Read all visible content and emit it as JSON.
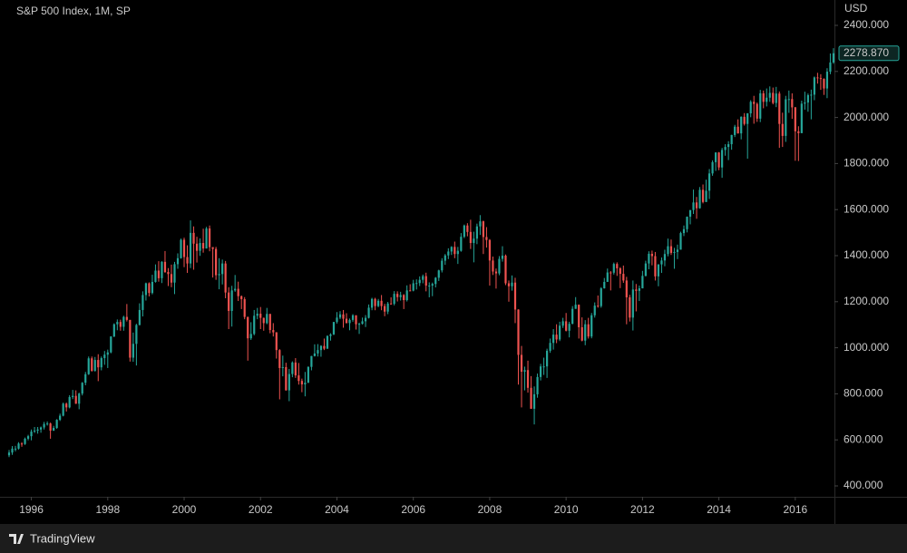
{
  "chart_data": {
    "type": "candlestick",
    "title": "S&P 500 Index, 1M, SP",
    "y_label": "USD",
    "up_color": "#26a69a",
    "down_color": "#ef5350",
    "open": [
      533,
      545,
      562,
      562,
      584,
      582,
      605,
      616,
      636,
      640,
      645,
      654,
      669,
      671,
      640,
      652,
      687,
      705,
      757,
      741,
      786,
      791,
      757,
      801,
      848,
      885,
      954,
      899,
      947,
      915,
      955,
      970,
      980,
      1049,
      1102,
      1112,
      1091,
      1134,
      1121,
      957,
      1017,
      1099,
      1164,
      1229,
      1280,
      1238,
      1286,
      1335,
      1302,
      1373,
      1329,
      1320,
      1283,
      1363,
      1389,
      1469,
      1394,
      1366,
      1499,
      1452,
      1421,
      1455,
      1431,
      1518,
      1437,
      1429,
      1315,
      1320,
      1366,
      1240,
      1160,
      1249,
      1256,
      1224,
      1211,
      1134,
      1041,
      1060,
      1139,
      1148,
      1130,
      1107,
      1147,
      1077,
      1067,
      990,
      912,
      916,
      815,
      886,
      936,
      880,
      856,
      841,
      848,
      917,
      964,
      975,
      990,
      1008,
      996,
      1051,
      1058,
      1112,
      1131,
      1145,
      1126,
      1107,
      1121,
      1141,
      1102,
      1104,
      1115,
      1130,
      1174,
      1212,
      1181,
      1204,
      1181,
      1157,
      1192,
      1191,
      1234,
      1220,
      1229,
      1207,
      1249,
      1248,
      1280,
      1281,
      1295,
      1311,
      1270,
      1270,
      1277,
      1304,
      1336,
      1378,
      1401,
      1418,
      1438,
      1407,
      1421,
      1482,
      1531,
      1503,
      1455,
      1474,
      1527,
      1549,
      1481,
      1468,
      1379,
      1331,
      1323,
      1386,
      1400,
      1280,
      1267,
      1283,
      1166,
      969,
      896,
      903,
      826,
      735,
      798,
      873,
      919,
      919,
      987,
      1021,
      1057,
      1036,
      1096,
      1115,
      1074,
      1104,
      1169,
      1187,
      1089,
      1031,
      1102,
      1049,
      1141,
      1183,
      1181,
      1258,
      1286,
      1327,
      1326,
      1364,
      1345,
      1321,
      1292,
      1219,
      1131,
      1253,
      1247,
      1258,
      1312,
      1366,
      1408,
      1398,
      1310,
      1362,
      1379,
      1407,
      1441,
      1412,
      1416,
      1426,
      1498,
      1515,
      1569,
      1598,
      1631,
      1606,
      1686,
      1633,
      1682,
      1757,
      1806,
      1848,
      1783,
      1859,
      1872,
      1884,
      1924,
      1960,
      1931,
      2003,
      1972,
      2018,
      2068,
      2059,
      1995,
      2105,
      2068,
      2086,
      2107,
      2063,
      2104,
      1972,
      1920,
      2079,
      2080,
      2044,
      1940,
      1932,
      2060,
      2065,
      2097,
      2099,
      2174,
      2171,
      2168,
      2126,
      2199,
      2239
    ],
    "high": [
      556,
      573,
      574,
      590,
      590,
      610,
      622,
      645,
      656,
      656,
      658,
      678,
      680,
      675,
      661,
      690,
      714,
      762,
      762,
      794,
      817,
      815,
      805,
      851,
      895,
      962,
      962,
      960,
      972,
      962,
      986,
      992,
      1050,
      1106,
      1123,
      1122,
      1139,
      1190,
      1121,
      1066,
      1104,
      1193,
      1245,
      1283,
      1284,
      1317,
      1362,
      1376,
      1376,
      1420,
      1346,
      1361,
      1373,
      1410,
      1474,
      1478,
      1445,
      1553,
      1527,
      1482,
      1475,
      1517,
      1525,
      1531,
      1437,
      1438,
      1389,
      1383,
      1377,
      1263,
      1269,
      1316,
      1287,
      1227,
      1220,
      1135,
      1111,
      1164,
      1173,
      1177,
      1131,
      1173,
      1147,
      1107,
      1068,
      994,
      966,
      935,
      908,
      941,
      955,
      934,
      866,
      895,
      919,
      965,
      1015,
      1016,
      1011,
      1040,
      1054,
      1063,
      1112,
      1155,
      1159,
      1164,
      1150,
      1127,
      1146,
      1141,
      1109,
      1131,
      1142,
      1188,
      1217,
      1217,
      1212,
      1229,
      1191,
      1199,
      1219,
      1246,
      1245,
      1243,
      1233,
      1271,
      1276,
      1295,
      1297,
      1310,
      1318,
      1326,
      1284,
      1283,
      1307,
      1339,
      1389,
      1407,
      1432,
      1441,
      1461,
      1438,
      1498,
      1535,
      1541,
      1556,
      1504,
      1539,
      1576,
      1552,
      1524,
      1472,
      1396,
      1344,
      1398,
      1441,
      1405,
      1292,
      1314,
      1304,
      1167,
      1008,
      918,
      944,
      877,
      832,
      888,
      930,
      957,
      996,
      1040,
      1081,
      1102,
      1113,
      1130,
      1151,
      1113,
      1181,
      1220,
      1188,
      1132,
      1120,
      1130,
      1151,
      1197,
      1227,
      1263,
      1303,
      1344,
      1333,
      1370,
      1371,
      1350,
      1357,
      1308,
      1230,
      1292,
      1277,
      1270,
      1334,
      1378,
      1419,
      1422,
      1416,
      1363,
      1392,
      1426,
      1474,
      1470,
      1434,
      1448,
      1504,
      1531,
      1570,
      1598,
      1687,
      1655,
      1698,
      1709,
      1730,
      1776,
      1814,
      1849,
      1850,
      1868,
      1884,
      1897,
      1925,
      1968,
      1992,
      2005,
      2019,
      2019,
      2075,
      2094,
      2065,
      2120,
      2117,
      2126,
      2135,
      2130,
      2133,
      2113,
      2021,
      2094,
      2117,
      2105,
      2046,
      1962,
      2073,
      2112,
      2104,
      2121,
      2178,
      2194,
      2188,
      2170,
      2214,
      2278,
      2301
    ],
    "low": [
      525,
      535,
      550,
      558,
      570,
      578,
      598,
      598,
      630,
      627,
      631,
      645,
      662,
      605,
      639,
      648,
      682,
      702,
      723,
      737,
      777,
      756,
      733,
      793,
      837,
      882,
      897,
      897,
      855,
      902,
      926,
      912,
      976,
      1046,
      1076,
      1074,
      1074,
      1114,
      940,
      939,
      923,
      1097,
      1136,
      1205,
      1223,
      1232,
      1283,
      1287,
      1281,
      1325,
      1268,
      1263,
      1233,
      1343,
      1387,
      1350,
      1325,
      1346,
      1339,
      1370,
      1399,
      1413,
      1431,
      1419,
      1305,
      1295,
      1254,
      1275,
      1215,
      1081,
      1092,
      1243,
      1203,
      1168,
      1124,
      944,
      1034,
      1054,
      1124,
      1081,
      1074,
      1102,
      1063,
      1049,
      953,
      776,
      876,
      814,
      768,
      872,
      869,
      840,
      807,
      789,
      847,
      902,
      962,
      962,
      961,
      990,
      995,
      1031,
      1055,
      1105,
      1124,
      1087,
      1106,
      1076,
      1113,
      1079,
      1060,
      1101,
      1090,
      1127,
      1163,
      1163,
      1176,
      1163,
      1137,
      1146,
      1188,
      1184,
      1201,
      1205,
      1168,
      1201,
      1246,
      1245,
      1253,
      1268,
      1280,
      1245,
      1219,
      1224,
      1262,
      1290,
      1327,
      1360,
      1385,
      1403,
      1389,
      1364,
      1417,
      1476,
      1484,
      1429,
      1371,
      1450,
      1490,
      1407,
      1435,
      1270,
      1316,
      1257,
      1315,
      1374,
      1272,
      1200,
      1248,
      1107,
      840,
      741,
      815,
      805,
      735,
      667,
      783,
      858,
      882,
      869,
      978,
      992,
      1020,
      1029,
      1086,
      1071,
      1045,
      1102,
      1169,
      1040,
      1028,
      1011,
      1040,
      1041,
      1131,
      1174,
      1174,
      1257,
      1295,
      1249,
      1318,
      1312,
      1259,
      1282,
      1102,
      1114,
      1075,
      1158,
      1203,
      1258,
      1310,
      1341,
      1358,
      1292,
      1267,
      1325,
      1354,
      1397,
      1403,
      1343,
      1385,
      1426,
      1485,
      1501,
      1536,
      1581,
      1560,
      1604,
      1627,
      1633,
      1646,
      1747,
      1768,
      1771,
      1738,
      1834,
      1815,
      1860,
      1915,
      1930,
      1905,
      1965,
      1821,
      2001,
      1973,
      1981,
      1980,
      2040,
      2048,
      2068,
      2057,
      2045,
      1868,
      1872,
      1894,
      2020,
      1994,
      1812,
      1811,
      1932,
      2034,
      2025,
      1992,
      2075,
      2147,
      2120,
      2098,
      2084,
      2188,
      2233
    ],
    "close": [
      545,
      562,
      562,
      584,
      582,
      605,
      616,
      636,
      640,
      645,
      654,
      669,
      671,
      640,
      652,
      687,
      705,
      757,
      741,
      786,
      791,
      757,
      801,
      848,
      885,
      954,
      899,
      947,
      915,
      955,
      970,
      980,
      1049,
      1102,
      1112,
      1091,
      1134,
      1121,
      957,
      1017,
      1099,
      1164,
      1229,
      1280,
      1238,
      1286,
      1335,
      1302,
      1373,
      1329,
      1320,
      1283,
      1363,
      1389,
      1469,
      1394,
      1366,
      1499,
      1452,
      1421,
      1455,
      1431,
      1518,
      1437,
      1429,
      1315,
      1320,
      1366,
      1240,
      1160,
      1249,
      1256,
      1224,
      1211,
      1134,
      1041,
      1060,
      1139,
      1148,
      1130,
      1107,
      1147,
      1077,
      1067,
      990,
      912,
      916,
      815,
      886,
      936,
      880,
      856,
      841,
      848,
      917,
      964,
      975,
      990,
      1008,
      996,
      1051,
      1058,
      1112,
      1131,
      1145,
      1126,
      1107,
      1121,
      1141,
      1102,
      1104,
      1115,
      1130,
      1174,
      1212,
      1181,
      1204,
      1181,
      1157,
      1192,
      1191,
      1234,
      1220,
      1229,
      1207,
      1249,
      1248,
      1280,
      1281,
      1295,
      1311,
      1270,
      1270,
      1277,
      1304,
      1336,
      1378,
      1401,
      1418,
      1438,
      1407,
      1421,
      1482,
      1531,
      1503,
      1455,
      1474,
      1527,
      1549,
      1481,
      1468,
      1379,
      1331,
      1323,
      1386,
      1400,
      1280,
      1267,
      1283,
      1166,
      969,
      896,
      903,
      826,
      735,
      798,
      873,
      919,
      919,
      987,
      1021,
      1057,
      1036,
      1096,
      1115,
      1074,
      1104,
      1169,
      1187,
      1089,
      1031,
      1102,
      1049,
      1141,
      1183,
      1181,
      1258,
      1286,
      1327,
      1326,
      1364,
      1345,
      1321,
      1292,
      1219,
      1131,
      1253,
      1247,
      1258,
      1312,
      1366,
      1408,
      1398,
      1310,
      1362,
      1379,
      1407,
      1441,
      1412,
      1416,
      1426,
      1498,
      1515,
      1569,
      1598,
      1631,
      1606,
      1686,
      1633,
      1682,
      1757,
      1806,
      1848,
      1783,
      1859,
      1872,
      1884,
      1924,
      1960,
      1931,
      2003,
      1972,
      2018,
      2068,
      2059,
      1995,
      2105,
      2068,
      2086,
      2107,
      2063,
      2104,
      1972,
      1920,
      2079,
      2080,
      2044,
      1940,
      1932,
      2060,
      2065,
      2097,
      2099,
      2174,
      2171,
      2168,
      2126,
      2199,
      2239,
      2278.87
    ],
    "last_close_label": "2278.870",
    "xlim": [
      -2.85,
      259.3
    ],
    "xticks": [
      {
        "value": 7,
        "label": "1996"
      },
      {
        "value": 31,
        "label": "1998"
      },
      {
        "value": 55,
        "label": "2000"
      },
      {
        "value": 79,
        "label": "2002"
      },
      {
        "value": 103,
        "label": "2004"
      },
      {
        "value": 127,
        "label": "2006"
      },
      {
        "value": 151,
        "label": "2008"
      },
      {
        "value": 175,
        "label": "2010"
      },
      {
        "value": 199,
        "label": "2012"
      },
      {
        "value": 223,
        "label": "2014"
      },
      {
        "value": 247,
        "label": "2016"
      }
    ],
    "ylim": [
      352.8,
      2510.2
    ],
    "yticks": [
      {
        "value": 400,
        "label": "400.000"
      },
      {
        "value": 600,
        "label": "600.000"
      },
      {
        "value": 800,
        "label": "800.000"
      },
      {
        "value": 1000,
        "label": "1000.000"
      },
      {
        "value": 1200,
        "label": "1200.000"
      },
      {
        "value": 1400,
        "label": "1400.000"
      },
      {
        "value": 1600,
        "label": "1600.000"
      },
      {
        "value": 1800,
        "label": "1800.000"
      },
      {
        "value": 2000,
        "label": "2000.000"
      },
      {
        "value": 2200,
        "label": "2200.000"
      },
      {
        "value": 2400,
        "label": "2400.000"
      }
    ]
  },
  "brand": "TradingView"
}
